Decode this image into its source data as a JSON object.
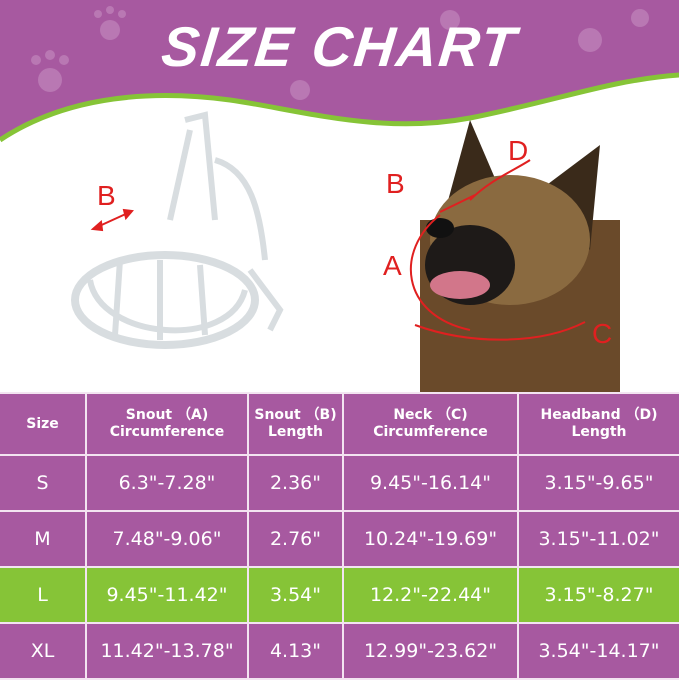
{
  "title": "SIZE CHART",
  "colors": {
    "purple": "#a759a0",
    "green": "#86c437",
    "arrow_red": "#e02020"
  },
  "diagram_labels": {
    "muzzle_b": "B",
    "dog_a": "A",
    "dog_b": "B",
    "dog_c": "C",
    "dog_d": "D"
  },
  "table": {
    "headers": [
      {
        "line1": "Size",
        "line2": ""
      },
      {
        "line1": "Snout （A)",
        "line2": "Circumference"
      },
      {
        "line1": "Snout （B)",
        "line2": "Length"
      },
      {
        "line1": "Neck （C)",
        "line2": "Circumference"
      },
      {
        "line1": "Headband （D)",
        "line2": "Length"
      }
    ],
    "rows": [
      {
        "size": "S",
        "snout_circ": "6.3\"-7.28\"",
        "snout_len": "2.36\"",
        "neck": "9.45\"-16.14\"",
        "headband": "3.15\"-9.65\"",
        "highlighted": false
      },
      {
        "size": "M",
        "snout_circ": "7.48\"-9.06\"",
        "snout_len": "2.76\"",
        "neck": "10.24\"-19.69\"",
        "headband": "3.15\"-11.02\"",
        "highlighted": false
      },
      {
        "size": "L",
        "snout_circ": "9.45\"-11.42\"",
        "snout_len": "3.54\"",
        "neck": "12.2\"-22.44\"",
        "headband": "3.15\"-8.27\"",
        "highlighted": true
      },
      {
        "size": "XL",
        "snout_circ": "11.42\"-13.78\"",
        "snout_len": "4.13\"",
        "neck": "12.99\"-23.62\"",
        "headband": "3.54\"-14.17\"",
        "highlighted": false
      }
    ]
  }
}
